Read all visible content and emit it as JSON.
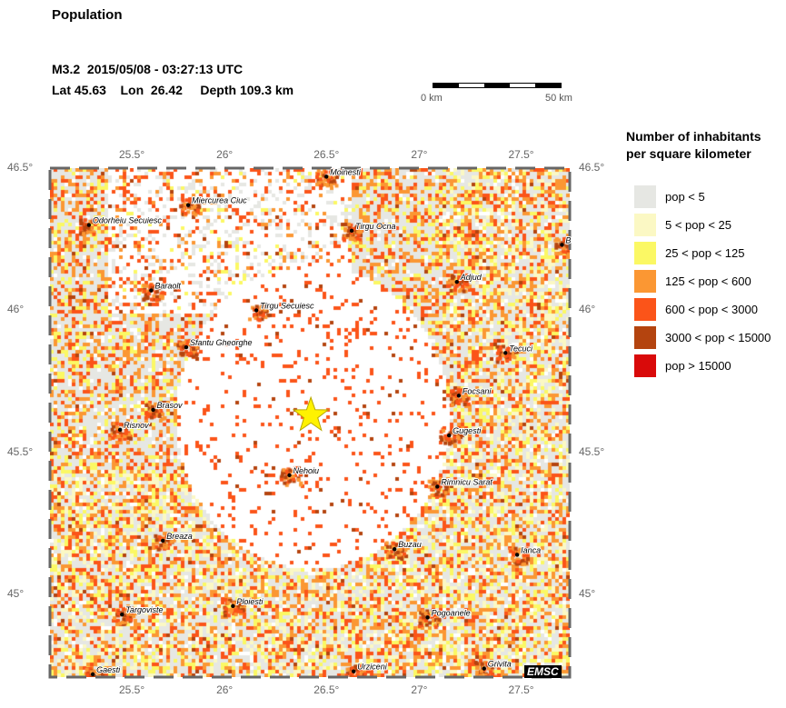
{
  "title": "Population",
  "event": {
    "line1": "M3.2  2015/05/08 - 03:27:13 UTC",
    "line2": "Lat 45.63    Lon  26.42     Depth 109.3 km",
    "lat": 45.63,
    "lon": 26.42
  },
  "scale_bar": {
    "start": "0 km",
    "end": "50 km"
  },
  "axes": {
    "lon_ticks": [
      "25.5°",
      "26°",
      "26.5°",
      "27°",
      "27.5°"
    ],
    "lat_ticks": [
      "46.5°",
      "46°",
      "45.5°",
      "45°"
    ],
    "lon_range": [
      25.08,
      27.75
    ],
    "lat_range": [
      44.71,
      46.5
    ]
  },
  "legend": {
    "title_line1": "Number of inhabitants",
    "title_line2": "per square kilometer",
    "items": [
      {
        "label": "pop < 5",
        "color": "#e6e7e3"
      },
      {
        "label": "5 < pop < 25",
        "color": "#fbf8c4"
      },
      {
        "label": "25 < pop < 125",
        "color": "#fbf864"
      },
      {
        "label": "125 < pop < 600",
        "color": "#fb9733"
      },
      {
        "label": "600 < pop < 3000",
        "color": "#fb5419"
      },
      {
        "label": "3000 < pop < 15000",
        "color": "#b4440f"
      },
      {
        "label": "pop > 15000",
        "color": "#d90a0a"
      }
    ]
  },
  "epicenter_color": "#fff200",
  "cities": [
    {
      "name": "Moinesti",
      "lon": 26.5,
      "lat": 46.47
    },
    {
      "name": "Miercurea Ciuc",
      "lon": 25.79,
      "lat": 46.37
    },
    {
      "name": "Odorheiu Secuiesc",
      "lon": 25.28,
      "lat": 46.3
    },
    {
      "name": "Tirgu Ocna",
      "lon": 26.63,
      "lat": 46.28
    },
    {
      "name": "B",
      "lon": 27.71,
      "lat": 46.23
    },
    {
      "name": "Adjud",
      "lon": 27.17,
      "lat": 46.1
    },
    {
      "name": "Baraolt",
      "lon": 25.6,
      "lat": 46.07
    },
    {
      "name": "Tirgu Secuiesc",
      "lon": 26.14,
      "lat": 46.0
    },
    {
      "name": "Sfantu Gheorghe",
      "lon": 25.78,
      "lat": 45.87
    },
    {
      "name": "Tecuci",
      "lon": 27.42,
      "lat": 45.85
    },
    {
      "name": "Focsani",
      "lon": 27.18,
      "lat": 45.7
    },
    {
      "name": "Brasov",
      "lon": 25.61,
      "lat": 45.65
    },
    {
      "name": "Risnov",
      "lon": 25.44,
      "lat": 45.58
    },
    {
      "name": "Gugesti",
      "lon": 27.13,
      "lat": 45.56
    },
    {
      "name": "Nehoiu",
      "lon": 26.31,
      "lat": 45.42
    },
    {
      "name": "Rimnicu Sarat",
      "lon": 27.07,
      "lat": 45.38
    },
    {
      "name": "Breaza",
      "lon": 25.66,
      "lat": 45.19
    },
    {
      "name": "Buzau",
      "lon": 26.85,
      "lat": 45.16
    },
    {
      "name": "Ianca",
      "lon": 27.48,
      "lat": 45.14
    },
    {
      "name": "Targoviste",
      "lon": 25.45,
      "lat": 44.93
    },
    {
      "name": "Ploiesti",
      "lon": 26.02,
      "lat": 44.96
    },
    {
      "name": "Pogoanele",
      "lon": 27.02,
      "lat": 44.92
    },
    {
      "name": "Gaesti",
      "lon": 25.3,
      "lat": 44.72
    },
    {
      "name": "Urziceni",
      "lon": 26.64,
      "lat": 44.73
    },
    {
      "name": "Grivita",
      "lon": 27.31,
      "lat": 44.74
    }
  ],
  "watermark": "EMSC"
}
